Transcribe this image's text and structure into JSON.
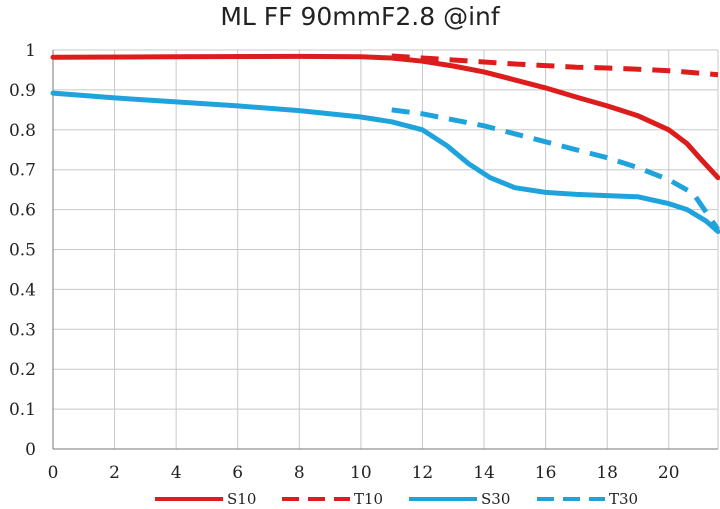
{
  "chart_data": {
    "type": "line",
    "title": "ML FF 90mmF2.8 @inf",
    "xlabel": "",
    "ylabel": "",
    "xlim": [
      0,
      21.6
    ],
    "ylim": [
      0,
      1
    ],
    "grid": true,
    "legend_position": "bottom",
    "x_ticks": [
      "0",
      "2",
      "4",
      "6",
      "8",
      "10",
      "12",
      "14",
      "16",
      "18",
      "20"
    ],
    "y_ticks": [
      "0",
      "0.1",
      "0.2",
      "0.3",
      "0.4",
      "0.5",
      "0.6",
      "0.7",
      "0.8",
      "0.9",
      "1"
    ],
    "series": [
      {
        "name": "S10",
        "color": "#dd1c1c",
        "style": "solid",
        "points": [
          [
            0,
            0.982
          ],
          [
            4,
            0.983
          ],
          [
            8,
            0.984
          ],
          [
            10,
            0.983
          ],
          [
            11,
            0.98
          ],
          [
            12,
            0.972
          ],
          [
            13,
            0.96
          ],
          [
            14,
            0.945
          ],
          [
            15,
            0.925
          ],
          [
            16,
            0.905
          ],
          [
            17,
            0.882
          ],
          [
            18,
            0.86
          ],
          [
            19,
            0.835
          ],
          [
            20,
            0.8
          ],
          [
            20.6,
            0.765
          ],
          [
            21,
            0.73
          ],
          [
            21.6,
            0.68
          ]
        ]
      },
      {
        "name": "T10",
        "color": "#dd1c1c",
        "style": "dashed",
        "points": [
          [
            11,
            0.985
          ],
          [
            12,
            0.98
          ],
          [
            13,
            0.975
          ],
          [
            14,
            0.97
          ],
          [
            15,
            0.965
          ],
          [
            16,
            0.961
          ],
          [
            17,
            0.957
          ],
          [
            18,
            0.955
          ],
          [
            19,
            0.952
          ],
          [
            20,
            0.948
          ],
          [
            21,
            0.942
          ],
          [
            21.6,
            0.938
          ]
        ]
      },
      {
        "name": "S30",
        "color": "#1fa3dc",
        "style": "solid",
        "points": [
          [
            0,
            0.892
          ],
          [
            2,
            0.88
          ],
          [
            4,
            0.87
          ],
          [
            6,
            0.86
          ],
          [
            8,
            0.848
          ],
          [
            10,
            0.832
          ],
          [
            11,
            0.82
          ],
          [
            12,
            0.8
          ],
          [
            12.8,
            0.76
          ],
          [
            13.5,
            0.715
          ],
          [
            14.2,
            0.68
          ],
          [
            15,
            0.655
          ],
          [
            16,
            0.643
          ],
          [
            17,
            0.638
          ],
          [
            18,
            0.635
          ],
          [
            19,
            0.632
          ],
          [
            20,
            0.615
          ],
          [
            20.6,
            0.6
          ],
          [
            21.2,
            0.572
          ],
          [
            21.6,
            0.545
          ]
        ]
      },
      {
        "name": "T30",
        "color": "#1fa3dc",
        "style": "dashed",
        "points": [
          [
            11,
            0.85
          ],
          [
            12,
            0.84
          ],
          [
            13,
            0.825
          ],
          [
            14,
            0.81
          ],
          [
            15,
            0.79
          ],
          [
            16,
            0.77
          ],
          [
            17,
            0.75
          ],
          [
            18,
            0.73
          ],
          [
            19,
            0.705
          ],
          [
            20,
            0.675
          ],
          [
            20.8,
            0.64
          ],
          [
            21.6,
            0.55
          ]
        ]
      }
    ]
  }
}
